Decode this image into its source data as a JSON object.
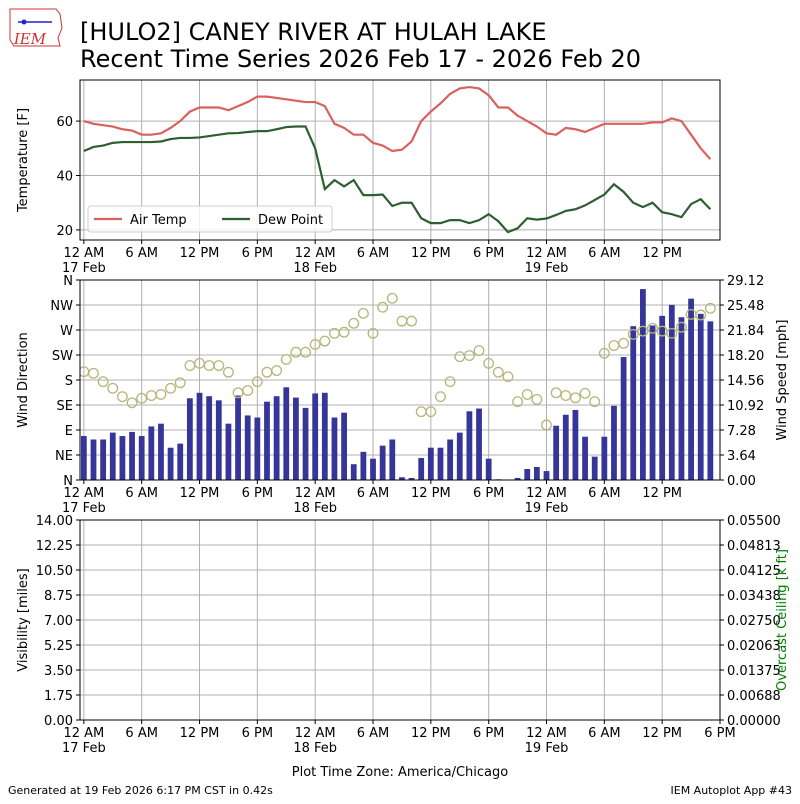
{
  "header": {
    "logo_text": "IEM",
    "title_line1": "[HULO2] CANEY RIVER  AT HULAH LAKE",
    "title_line2": "Recent Time Series 2026 Feb 17 - 2026 Feb 20"
  },
  "chart_data": [
    {
      "type": "line",
      "ylabel": "Temperature [F]",
      "x": [
        0,
        1,
        2,
        3,
        4,
        5,
        6,
        7,
        8,
        9,
        10,
        11,
        12,
        13,
        14,
        15,
        16,
        17,
        18,
        19,
        20,
        21,
        22,
        23,
        24,
        25,
        26,
        27,
        28,
        29,
        30,
        31,
        32,
        33,
        34,
        35,
        36,
        37,
        38,
        39,
        40,
        41,
        42,
        43,
        44,
        45,
        46,
        47,
        48,
        49,
        50,
        51,
        52,
        53,
        54,
        55,
        56,
        57,
        58,
        59,
        60,
        61,
        62,
        63,
        64,
        65
      ],
      "xlim": [
        -0.4,
        66
      ],
      "xticks": [
        {
          "value": 0,
          "label": "12 AM\n17 Feb"
        },
        {
          "value": 6,
          "label": "6 AM"
        },
        {
          "value": 12,
          "label": "12 PM"
        },
        {
          "value": 18,
          "label": "6 PM"
        },
        {
          "value": 24,
          "label": "12 AM\n18 Feb"
        },
        {
          "value": 30,
          "label": "6 AM"
        },
        {
          "value": 36,
          "label": "12 PM"
        },
        {
          "value": 42,
          "label": "6 PM"
        },
        {
          "value": 48,
          "label": "12 AM\n19 Feb"
        },
        {
          "value": 54,
          "label": "6 AM"
        },
        {
          "value": 60,
          "label": "12 PM"
        }
      ],
      "ylim": [
        16.3,
        75.1
      ],
      "yticks": [
        20,
        40,
        60
      ],
      "grid": true,
      "legend": "lower left",
      "series": [
        {
          "name": "Air Temp",
          "color": "#d9605f",
          "values": [
            60,
            59,
            58.5,
            58,
            57,
            56.5,
            55,
            55,
            55.5,
            57.5,
            60,
            63.5,
            65,
            65,
            65,
            64,
            65.5,
            67,
            69,
            69,
            68.5,
            68,
            67.5,
            67,
            67,
            65.5,
            59,
            57.5,
            55,
            55,
            52,
            51,
            49,
            49.5,
            52.5,
            60,
            63.5,
            66.5,
            70,
            72,
            72.5,
            72,
            69.5,
            65,
            65,
            62,
            60,
            58,
            55.5,
            55,
            57.5,
            57,
            56,
            57.5,
            59,
            59,
            59,
            59,
            59,
            59.5,
            59.5,
            61,
            60,
            55,
            50,
            46
          ]
        },
        {
          "name": "Dew Point",
          "color": "#2f5e30",
          "values": [
            49,
            50.5,
            51,
            52,
            52.3,
            52.3,
            52.3,
            52.3,
            52.5,
            53.4,
            53.8,
            53.8,
            54,
            54.5,
            55,
            55.5,
            55.6,
            56,
            56.3,
            56.3,
            57,
            57.8,
            58,
            58,
            50,
            35,
            38.3,
            36,
            38.3,
            32.8,
            32.8,
            33,
            28.8,
            30,
            30,
            24.3,
            22.5,
            22.5,
            23.6,
            23.6,
            22.5,
            23.6,
            25.8,
            23.2,
            19.2,
            20.6,
            24.3,
            23.8,
            24.2,
            25.5,
            27,
            27.6,
            29,
            31,
            33,
            36.8,
            34,
            30,
            28.4,
            30,
            26.5,
            25.8,
            24.7,
            29.5,
            31.3,
            27.6
          ]
        }
      ]
    },
    {
      "type": "bar",
      "ylabel": "Wind Direction",
      "y2label": "Wind Speed [mph]",
      "x": [
        0,
        1,
        2,
        3,
        4,
        5,
        6,
        7,
        8,
        9,
        10,
        11,
        12,
        13,
        14,
        15,
        16,
        17,
        18,
        19,
        20,
        21,
        22,
        23,
        24,
        25,
        26,
        27,
        28,
        29,
        30,
        31,
        32,
        33,
        34,
        35,
        36,
        37,
        38,
        39,
        40,
        41,
        42,
        43,
        44,
        45,
        46,
        47,
        48,
        49,
        50,
        51,
        52,
        53,
        54,
        55,
        56,
        57,
        58,
        59,
        60,
        61,
        62,
        63,
        64,
        65
      ],
      "xlim": [
        -0.4,
        66
      ],
      "xticks": [
        {
          "value": 0,
          "label": "12 AM\n17 Feb"
        },
        {
          "value": 6,
          "label": "6 AM"
        },
        {
          "value": 12,
          "label": "12 PM"
        },
        {
          "value": 18,
          "label": "6 PM"
        },
        {
          "value": 24,
          "label": "12 AM\n18 Feb"
        },
        {
          "value": 30,
          "label": "6 AM"
        },
        {
          "value": 36,
          "label": "12 PM"
        },
        {
          "value": 42,
          "label": "6 PM"
        },
        {
          "value": 48,
          "label": "12 AM\n19 Feb"
        },
        {
          "value": 54,
          "label": "6 AM"
        },
        {
          "value": 60,
          "label": "12 PM"
        }
      ],
      "ylim": [
        0,
        360
      ],
      "yticks": [
        {
          "value": 0,
          "label": "N"
        },
        {
          "value": 45,
          "label": "NE"
        },
        {
          "value": 90,
          "label": "E"
        },
        {
          "value": 135,
          "label": "SE"
        },
        {
          "value": 180,
          "label": "S"
        },
        {
          "value": 225,
          "label": "SW"
        },
        {
          "value": 270,
          "label": "W"
        },
        {
          "value": 315,
          "label": "NW"
        },
        {
          "value": 360,
          "label": "N"
        }
      ],
      "y2lim": [
        0,
        29.12
      ],
      "y2ticks": [
        {
          "value": 0,
          "label": "0.00"
        },
        {
          "value": 3.64,
          "label": "3.64"
        },
        {
          "value": 7.28,
          "label": "7.28"
        },
        {
          "value": 10.92,
          "label": "10.92"
        },
        {
          "value": 14.56,
          "label": "14.56"
        },
        {
          "value": 18.2,
          "label": "18.20"
        },
        {
          "value": 21.84,
          "label": "21.84"
        },
        {
          "value": 25.48,
          "label": "25.48"
        },
        {
          "value": 29.12,
          "label": "29.12"
        }
      ],
      "grid": true,
      "series": [
        {
          "type": "bar",
          "axis": "y2",
          "color": "#36369a",
          "values": [
            6.4,
            5.9,
            5.9,
            6.9,
            6.4,
            7.0,
            6.4,
            7.8,
            8.2,
            4.7,
            5.3,
            11.9,
            12.7,
            12.2,
            11.6,
            8.2,
            12.3,
            9.4,
            9.1,
            11.4,
            12.2,
            13.5,
            12,
            10.5,
            12.6,
            12.7,
            9.1,
            9.8,
            2.3,
            4.1,
            3.1,
            5,
            5.9,
            0.4,
            0.3,
            3.2,
            4.7,
            4.7,
            5.9,
            6.9,
            10,
            10.4,
            3.1,
            0.1,
            0,
            0.3,
            1.6,
            1.9,
            1.3,
            7.9,
            9.5,
            10.2,
            6.3,
            3.4,
            6.3,
            10.8,
            17.9,
            22.4,
            27.8,
            22.5,
            23.9,
            25.5,
            23.7,
            26.4,
            24.2,
            23.1
          ]
        },
        {
          "type": "scatter",
          "color": "#b5b57a",
          "values": [
            195,
            192,
            177,
            165,
            150,
            139,
            147,
            152,
            154,
            165,
            175,
            206,
            210,
            206,
            206,
            194,
            157,
            161,
            177,
            194,
            197,
            217,
            230,
            230,
            244,
            250,
            264,
            266,
            282,
            300,
            264,
            311,
            327,
            286,
            286,
            123,
            123,
            150,
            177,
            222,
            224,
            233,
            210,
            194,
            186,
            141,
            154,
            145,
            99,
            157,
            152,
            148,
            156,
            141,
            228,
            242,
            246,
            262,
            268,
            273,
            268,
            264,
            275,
            298,
            297,
            309
          ]
        }
      ]
    },
    {
      "type": "line",
      "ylabel": "Visibility [miles]",
      "y2label": "Overcast Ceiling [k ft]",
      "y2label_color": "#008000",
      "xlabel": "Plot Time Zone: America/Chicago",
      "xlim": [
        -0.4,
        66
      ],
      "xticks": [
        {
          "value": 0,
          "label": "12 AM\n17 Feb"
        },
        {
          "value": 6,
          "label": "6 AM"
        },
        {
          "value": 12,
          "label": "12 PM"
        },
        {
          "value": 18,
          "label": "6 PM"
        },
        {
          "value": 24,
          "label": "12 AM\n18 Feb"
        },
        {
          "value": 30,
          "label": "6 AM"
        },
        {
          "value": 36,
          "label": "12 PM"
        },
        {
          "value": 42,
          "label": "6 PM"
        },
        {
          "value": 48,
          "label": "12 AM\n19 Feb"
        },
        {
          "value": 54,
          "label": "6 AM"
        },
        {
          "value": 60,
          "label": "12 PM"
        },
        {
          "value": 66,
          "label": "6 PM"
        }
      ],
      "ylim": [
        0,
        14
      ],
      "yticks": [
        {
          "value": 0,
          "label": "0.00"
        },
        {
          "value": 1.75,
          "label": "1.75"
        },
        {
          "value": 3.5,
          "label": "3.50"
        },
        {
          "value": 5.25,
          "label": "5.25"
        },
        {
          "value": 7,
          "label": "7.00"
        },
        {
          "value": 8.75,
          "label": "8.75"
        },
        {
          "value": 10.5,
          "label": "10.50"
        },
        {
          "value": 12.25,
          "label": "12.25"
        },
        {
          "value": 14,
          "label": "14.00"
        }
      ],
      "y2lim": [
        0,
        0.055
      ],
      "y2ticks": [
        {
          "value": 0,
          "label": "0.00000"
        },
        {
          "value": 0.006875,
          "label": "0.00688"
        },
        {
          "value": 0.01375,
          "label": "0.01375"
        },
        {
          "value": 0.020625,
          "label": "0.02063"
        },
        {
          "value": 0.0275,
          "label": "0.02750"
        },
        {
          "value": 0.034375,
          "label": "0.03438"
        },
        {
          "value": 0.04125,
          "label": "0.04125"
        },
        {
          "value": 0.048125,
          "label": "0.04813"
        },
        {
          "value": 0.055,
          "label": "0.05500"
        }
      ],
      "grid": true,
      "series": []
    }
  ],
  "footer": {
    "left": "Generated at 19 Feb 2026 6:17 PM CST in 0.42s",
    "right": "IEM Autoplot App #43"
  }
}
